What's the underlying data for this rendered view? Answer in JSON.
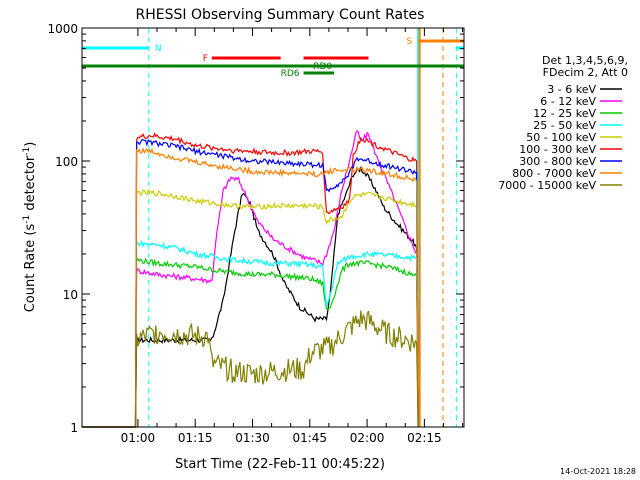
{
  "chart_data": {
    "type": "line",
    "title": "RHESSI Observing Summary Count Rates",
    "xlabel": "Start Time (22-Feb-11 00:45:22)",
    "ylabel_main": "Count Rate (s",
    "ylabel_sup1": "-1",
    "ylabel_mid": " detector",
    "ylabel_sup2": "-1",
    "ylabel_end": ")",
    "x_unit": "minutes after 00:45:22",
    "xlim": [
      0,
      100
    ],
    "ylim": [
      1,
      1000
    ],
    "yscale": "log",
    "xticks": [
      {
        "t": 14.63,
        "label": "01:00"
      },
      {
        "t": 29.63,
        "label": "01:15"
      },
      {
        "t": 44.63,
        "label": "01:30"
      },
      {
        "t": 59.63,
        "label": "01:45"
      },
      {
        "t": 74.63,
        "label": "02:00"
      },
      {
        "t": 89.63,
        "label": "02:15"
      }
    ],
    "yticks": [
      {
        "v": 1,
        "label": "1"
      },
      {
        "v": 10,
        "label": "10"
      },
      {
        "v": 100,
        "label": "100"
      },
      {
        "v": 1000,
        "label": "1000"
      }
    ],
    "legend_header": [
      "Det 1,3,4,5,6,9,",
      "FDecim 2, Att 0"
    ],
    "series": [
      {
        "name": "3 - 6 keV",
        "color": "#000000",
        "points": [
          [
            0,
            1
          ],
          [
            14,
            1
          ],
          [
            14.3,
            4.5
          ],
          [
            34,
            4.5
          ],
          [
            37,
            9
          ],
          [
            40,
            30
          ],
          [
            42,
            58
          ],
          [
            44,
            48
          ],
          [
            46,
            30
          ],
          [
            50,
            20
          ],
          [
            53,
            12
          ],
          [
            57,
            8
          ],
          [
            61,
            6.5
          ],
          [
            64,
            6.5
          ],
          [
            65,
            10
          ],
          [
            66,
            20
          ],
          [
            67,
            40
          ],
          [
            69,
            55
          ],
          [
            71,
            80
          ],
          [
            73,
            88
          ],
          [
            75,
            75
          ],
          [
            77,
            60
          ],
          [
            79,
            45
          ],
          [
            82,
            35
          ],
          [
            85,
            28
          ],
          [
            87,
            24
          ],
          [
            87.6,
            22
          ],
          [
            88,
            1
          ]
        ]
      },
      {
        "name": "6 - 12 keV",
        "color": "#ff00ff",
        "points": [
          [
            0,
            1
          ],
          [
            14,
            1
          ],
          [
            14.3,
            15
          ],
          [
            20,
            14
          ],
          [
            25,
            13.5
          ],
          [
            30,
            13
          ],
          [
            34,
            12.5
          ],
          [
            35,
            25
          ],
          [
            37,
            60
          ],
          [
            39,
            75
          ],
          [
            41,
            72
          ],
          [
            43,
            55
          ],
          [
            46,
            35
          ],
          [
            50,
            26
          ],
          [
            54,
            22
          ],
          [
            58,
            19
          ],
          [
            63,
            17
          ],
          [
            64,
            20
          ],
          [
            66,
            30
          ],
          [
            68,
            60
          ],
          [
            70,
            100
          ],
          [
            72,
            170
          ],
          [
            73,
            140
          ],
          [
            75,
            160
          ],
          [
            77,
            110
          ],
          [
            79,
            80
          ],
          [
            82,
            50
          ],
          [
            85,
            30
          ],
          [
            87,
            22
          ],
          [
            87.6,
            20
          ],
          [
            88,
            1
          ]
        ]
      },
      {
        "name": "12 - 25 keV",
        "color": "#00cc00",
        "points": [
          [
            0,
            1
          ],
          [
            14,
            1
          ],
          [
            14.3,
            18
          ],
          [
            20,
            17
          ],
          [
            25,
            16.5
          ],
          [
            30,
            16
          ],
          [
            35,
            15
          ],
          [
            40,
            14.5
          ],
          [
            45,
            14
          ],
          [
            50,
            14
          ],
          [
            55,
            13.5
          ],
          [
            60,
            13
          ],
          [
            63,
            12
          ],
          [
            64,
            7.5
          ],
          [
            65,
            8
          ],
          [
            67,
            12
          ],
          [
            68,
            15
          ],
          [
            70,
            17
          ],
          [
            75,
            17
          ],
          [
            80,
            16
          ],
          [
            85,
            14.5
          ],
          [
            87.6,
            13.5
          ],
          [
            88,
            1
          ]
        ]
      },
      {
        "name": "25 - 50 keV",
        "color": "#00ffff",
        "points": [
          [
            0,
            1
          ],
          [
            14,
            1
          ],
          [
            14.3,
            24
          ],
          [
            20,
            23.5
          ],
          [
            25,
            22
          ],
          [
            30,
            20
          ],
          [
            35,
            19
          ],
          [
            40,
            18
          ],
          [
            45,
            17.5
          ],
          [
            50,
            17
          ],
          [
            55,
            17
          ],
          [
            60,
            16.5
          ],
          [
            63,
            16
          ],
          [
            64,
            8
          ],
          [
            65,
            10
          ],
          [
            67,
            17
          ],
          [
            70,
            19
          ],
          [
            75,
            20
          ],
          [
            80,
            19.5
          ],
          [
            85,
            19
          ],
          [
            87.6,
            18.5
          ],
          [
            88,
            1
          ]
        ]
      },
      {
        "name": "50 - 100 keV",
        "color": "#cccc00",
        "points": [
          [
            0,
            1
          ],
          [
            14,
            1
          ],
          [
            14.3,
            58
          ],
          [
            20,
            57
          ],
          [
            25,
            54
          ],
          [
            30,
            50
          ],
          [
            35,
            48
          ],
          [
            40,
            46
          ],
          [
            45,
            45
          ],
          [
            50,
            46
          ],
          [
            55,
            46
          ],
          [
            60,
            46
          ],
          [
            63,
            45
          ],
          [
            64,
            35
          ],
          [
            65,
            36
          ],
          [
            68,
            38
          ],
          [
            70,
            50
          ],
          [
            72,
            55
          ],
          [
            75,
            56
          ],
          [
            80,
            52
          ],
          [
            85,
            48
          ],
          [
            87.6,
            47
          ],
          [
            88,
            1
          ]
        ]
      },
      {
        "name": "100 - 300 keV",
        "color": "#ff0000",
        "points": [
          [
            0,
            1
          ],
          [
            14,
            1
          ],
          [
            14.3,
            150
          ],
          [
            18,
            155
          ],
          [
            25,
            145
          ],
          [
            30,
            130
          ],
          [
            35,
            125
          ],
          [
            40,
            120
          ],
          [
            45,
            118
          ],
          [
            50,
            115
          ],
          [
            55,
            115
          ],
          [
            60,
            118
          ],
          [
            63,
            117
          ],
          [
            64,
            40
          ],
          [
            65,
            42
          ],
          [
            68,
            45
          ],
          [
            70,
            50
          ],
          [
            71,
            110
          ],
          [
            73,
            150
          ],
          [
            75,
            140
          ],
          [
            80,
            120
          ],
          [
            85,
            105
          ],
          [
            87.6,
            100
          ],
          [
            88,
            1
          ]
        ]
      },
      {
        "name": "300 - 800 keV",
        "color": "#0000ff",
        "points": [
          [
            0,
            1
          ],
          [
            14,
            1
          ],
          [
            14.3,
            140
          ],
          [
            18,
            138
          ],
          [
            25,
            128
          ],
          [
            30,
            118
          ],
          [
            35,
            112
          ],
          [
            40,
            105
          ],
          [
            45,
            100
          ],
          [
            50,
            98
          ],
          [
            55,
            96
          ],
          [
            60,
            94
          ],
          [
            63,
            93
          ],
          [
            64,
            60
          ],
          [
            65,
            62
          ],
          [
            68,
            70
          ],
          [
            70,
            80
          ],
          [
            72,
            105
          ],
          [
            75,
            100
          ],
          [
            80,
            92
          ],
          [
            85,
            85
          ],
          [
            87.6,
            82
          ],
          [
            88,
            1
          ]
        ]
      },
      {
        "name": "800 - 7000 keV",
        "color": "#ff8000",
        "points": [
          [
            0,
            1
          ],
          [
            14,
            1
          ],
          [
            14.3,
            120
          ],
          [
            18,
            118
          ],
          [
            25,
            105
          ],
          [
            30,
            98
          ],
          [
            35,
            92
          ],
          [
            40,
            88
          ],
          [
            45,
            83
          ],
          [
            50,
            82
          ],
          [
            55,
            81
          ],
          [
            60,
            80
          ],
          [
            63,
            79
          ],
          [
            64,
            83
          ],
          [
            66,
            85
          ],
          [
            70,
            86
          ],
          [
            75,
            85
          ],
          [
            80,
            80
          ],
          [
            85,
            75
          ],
          [
            87.6,
            70
          ],
          [
            88,
            1
          ]
        ]
      },
      {
        "name": "7000 - 15000 keV",
        "color": "#808000",
        "points": [
          [
            0,
            1
          ],
          [
            14,
            1
          ],
          [
            14.3,
            4.5
          ],
          [
            20,
            5.2
          ],
          [
            25,
            5
          ],
          [
            30,
            4.8
          ],
          [
            33,
            4.8
          ],
          [
            34,
            3
          ],
          [
            40,
            2.6
          ],
          [
            45,
            2.5
          ],
          [
            50,
            2.6
          ],
          [
            55,
            2.7
          ],
          [
            58,
            2.7
          ],
          [
            60,
            3.6
          ],
          [
            65,
            4
          ],
          [
            70,
            5.5
          ],
          [
            73,
            6.5
          ],
          [
            75,
            6.2
          ],
          [
            80,
            5
          ],
          [
            85,
            4.5
          ],
          [
            87.6,
            4.3
          ],
          [
            88,
            1
          ]
        ]
      }
    ],
    "flags": [
      {
        "label": "N",
        "color": "#00ffff",
        "segments": [
          [
            0,
            17.5
          ],
          [
            98,
            100
          ]
        ]
      },
      {
        "label": "S",
        "color": "#ff8000",
        "segments": [
          [
            88,
            100
          ]
        ]
      },
      {
        "label": "F",
        "color": "#ff0000",
        "segments": [
          [
            34,
            52
          ],
          [
            58,
            75
          ]
        ]
      },
      {
        "label": "RD0",
        "color": "#008000",
        "segments": [
          [
            0,
            100
          ]
        ]
      },
      {
        "label": "RD6",
        "color": "#008000",
        "segments": [
          [
            58,
            66
          ]
        ]
      }
    ],
    "vertical_lines": [
      {
        "t": 17.5,
        "color": "#00ffff",
        "style": "dashed"
      },
      {
        "t": 98,
        "color": "#00ffff",
        "style": "dashed"
      },
      {
        "t": 94.5,
        "color": "#ff8000",
        "style": "dashed"
      },
      {
        "t": 88,
        "color": "#00ffff",
        "style": "solid"
      },
      {
        "t": 88.4,
        "color": "#ff8000",
        "style": "solid"
      }
    ],
    "grid": false,
    "legend_position": "right"
  },
  "footer": {
    "timestamp": "14-Oct-2021 18:28"
  }
}
